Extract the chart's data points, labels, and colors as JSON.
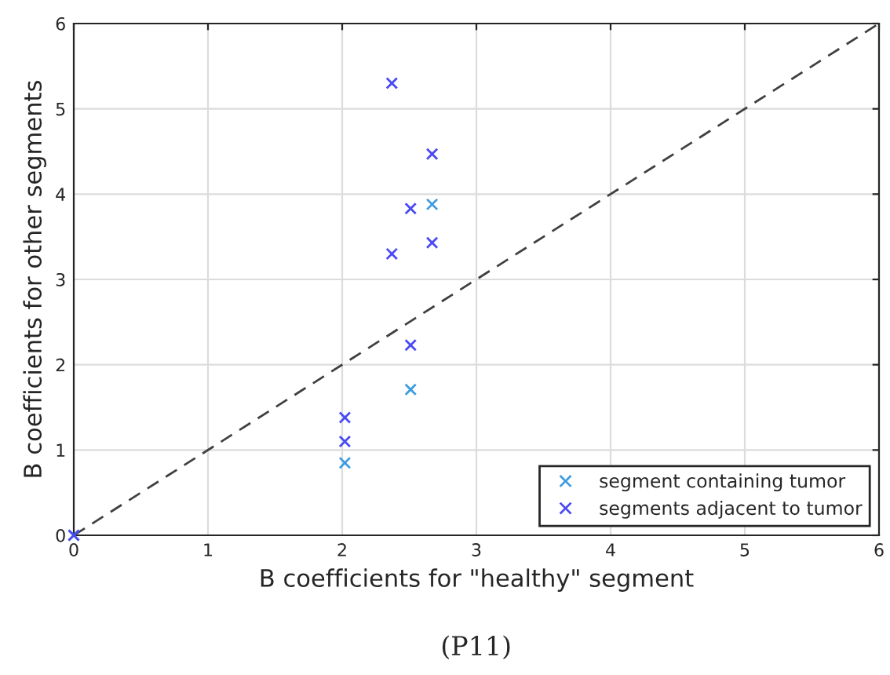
{
  "chart_data": {
    "type": "scatter",
    "xlabel": "B coefficients for \"healthy\" segment",
    "ylabel": "B coefficients for other segments",
    "annotations": [
      "(P11)"
    ],
    "series": [
      {
        "name": "segment containing tumor",
        "color": "#3d9be0",
        "x": [
          0,
          2.02,
          2.51,
          2.67
        ],
        "values": [
          0,
          0.85,
          1.71,
          3.88
        ]
      },
      {
        "name": "segments adjacent to tumor",
        "color": "#4a4af5",
        "x": [
          0,
          2.02,
          2.02,
          2.51,
          2.37,
          2.51,
          2.67,
          2.67,
          2.37
        ],
        "values": [
          0,
          1.1,
          1.38,
          2.23,
          3.3,
          3.83,
          3.43,
          4.47,
          5.3
        ]
      },
      {
        "type": "line",
        "color": "#404040",
        "line_style": "dashed",
        "marker": "none",
        "x": [
          0,
          6
        ],
        "values": [
          0,
          6
        ]
      }
    ],
    "marker": "cross",
    "xlim": [
      0,
      6
    ],
    "ylim": [
      0,
      6
    ],
    "xticks": [
      0,
      1,
      2,
      3,
      4,
      5,
      6
    ],
    "yticks": [
      0,
      1,
      2,
      3,
      4,
      5,
      6
    ],
    "grid": true,
    "legend": "bottom right"
  }
}
